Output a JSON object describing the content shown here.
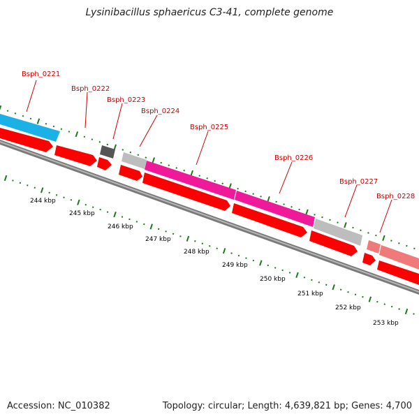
{
  "title": "Lysinibacillus sphaericus C3-41, complete genome",
  "footer": {
    "accession": "Accession: NC_010382",
    "summary": "Topology: circular; Length: 4,639,821 bp; Genes: 4,700"
  },
  "colors": {
    "cds": "#ff0000",
    "backbone": "#808080",
    "ticks": "#1a7a1a",
    "label": "#cc0000"
  },
  "gene_labels": [
    "Bsph_0221",
    "Bsph_0222",
    "Bsph_0223",
    "Bsph_0224",
    "Bsph_0225",
    "Bsph_0226",
    "Bsph_0227",
    "Bsph_0228"
  ],
  "kbp_labels": [
    "244 kbp",
    "245 kbp",
    "246 kbp",
    "247 kbp",
    "248 kbp",
    "249 kbp",
    "250 kbp",
    "251 kbp",
    "252 kbp",
    "253 kbp"
  ]
}
